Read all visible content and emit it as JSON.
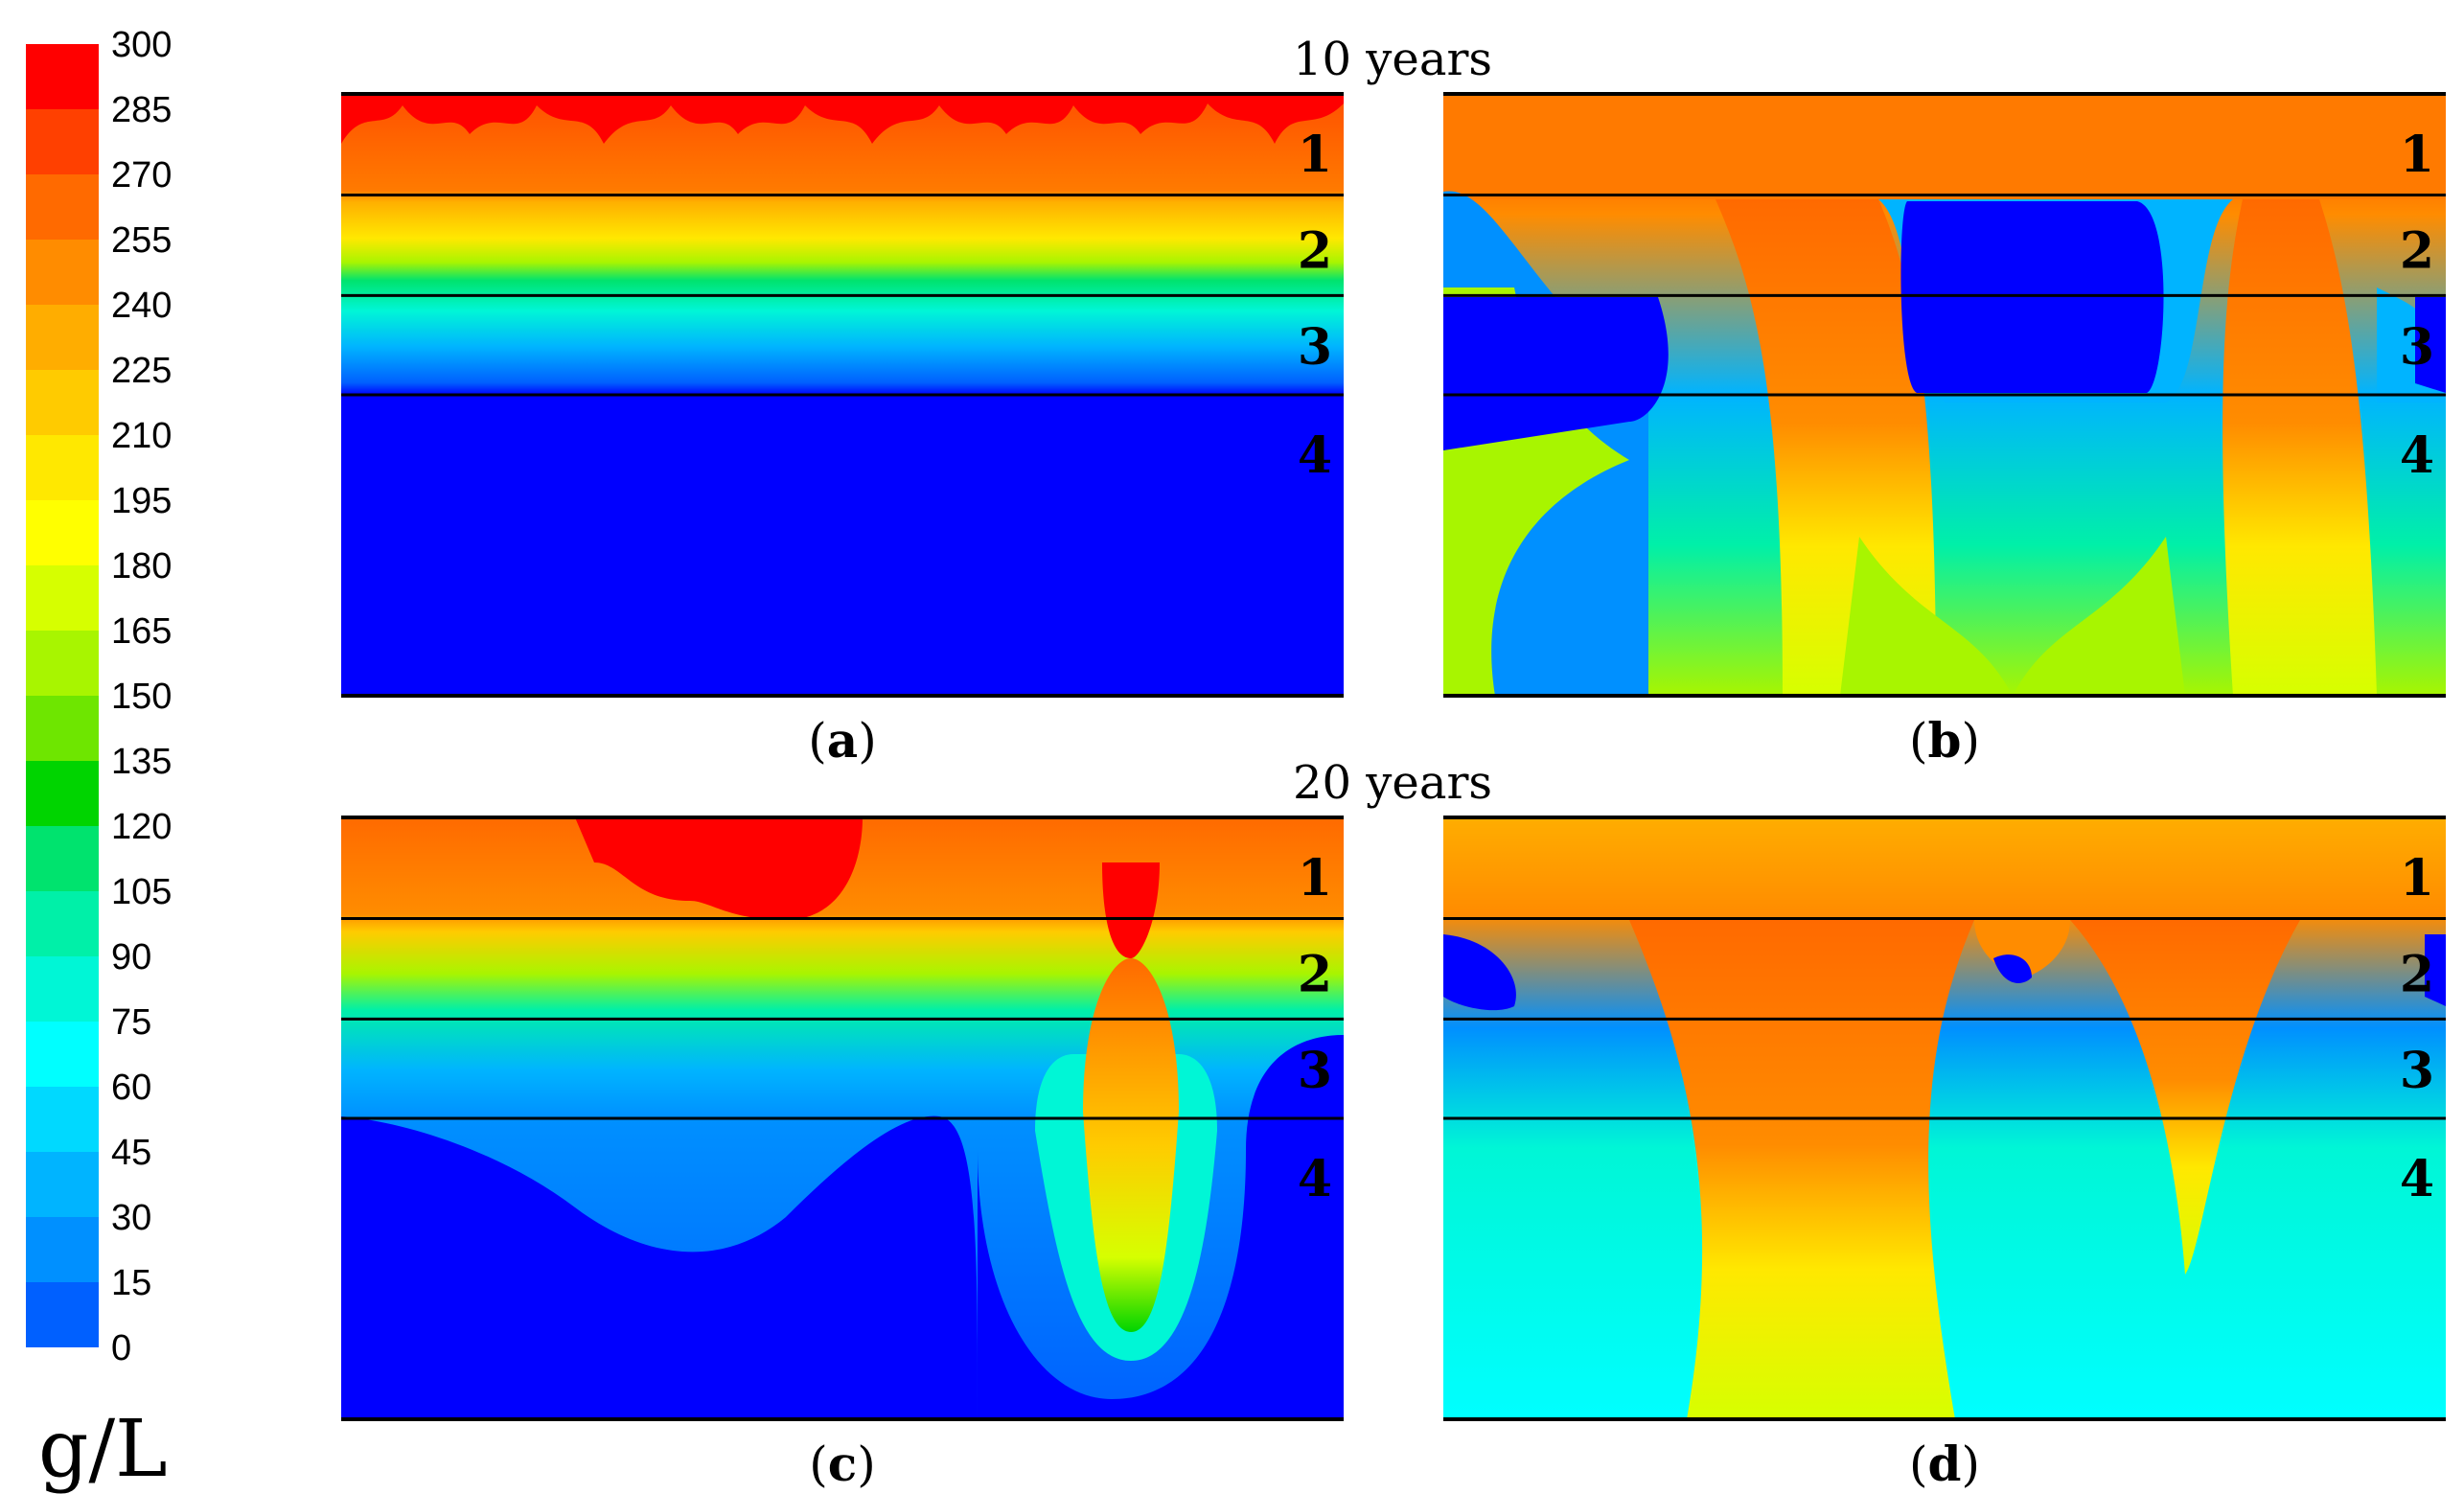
{
  "colorbar": {
    "ticks": [
      "300",
      "285",
      "270",
      "255",
      "240",
      "225",
      "210",
      "195",
      "180",
      "165",
      "150",
      "135",
      "120",
      "105",
      "90",
      "75",
      "60",
      "45",
      "30",
      "15",
      "0"
    ],
    "colors": [
      "#ff0000",
      "#ff4000",
      "#ff6a00",
      "#ff8c00",
      "#ffad00",
      "#ffcb00",
      "#ffe800",
      "#ffff00",
      "#d6ff00",
      "#a8f500",
      "#6ee600",
      "#00d400",
      "#00e36e",
      "#00f0a8",
      "#00f6d6",
      "#00ffff",
      "#00d9ff",
      "#00b4ff",
      "#0090ff",
      "#0060ff",
      "#0000ff"
    ],
    "unit": "g/L"
  },
  "headers": {
    "top": "10 years",
    "bottom": "20 years"
  },
  "panels": [
    {
      "id": "a",
      "caption_letter": "a",
      "layers": [
        "1",
        "2",
        "3",
        "4"
      ]
    },
    {
      "id": "b",
      "caption_letter": "b",
      "layers": [
        "1",
        "2",
        "3",
        "4"
      ]
    },
    {
      "id": "c",
      "caption_letter": "c",
      "layers": [
        "1",
        "2",
        "3",
        "4"
      ]
    },
    {
      "id": "d",
      "caption_letter": "d",
      "layers": [
        "1",
        "2",
        "3",
        "4"
      ]
    }
  ]
}
